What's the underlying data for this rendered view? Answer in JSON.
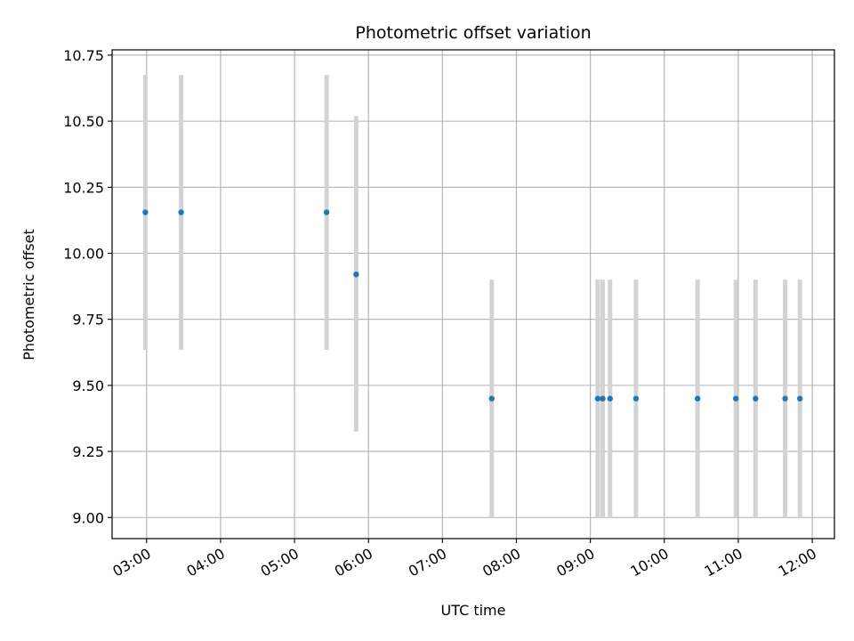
{
  "chart_data": {
    "type": "scatter",
    "title": "Photometric offset variation",
    "xlabel": "UTC time",
    "ylabel": "Photometric offset",
    "grid": true,
    "x_ticks": [
      "03:00",
      "04:00",
      "05:00",
      "06:00",
      "07:00",
      "08:00",
      "09:00",
      "10:00",
      "11:00",
      "12:00"
    ],
    "y_ticks": [
      "9.00",
      "9.25",
      "9.50",
      "9.75",
      "10.00",
      "10.25",
      "10.50",
      "10.75"
    ],
    "xlim": [
      "02:32",
      "12:18"
    ],
    "ylim": [
      8.92,
      10.77
    ],
    "point_color": "#1f77b4",
    "errorbar_color": "#d3d3d3",
    "points": [
      {
        "x": "02:59",
        "y": 10.155,
        "low": 9.635,
        "high": 10.675
      },
      {
        "x": "03:28",
        "y": 10.155,
        "low": 9.635,
        "high": 10.675
      },
      {
        "x": "05:26",
        "y": 10.155,
        "low": 9.635,
        "high": 10.675
      },
      {
        "x": "05:50",
        "y": 9.92,
        "low": 9.325,
        "high": 10.52
      },
      {
        "x": "07:40",
        "y": 9.45,
        "low": 9.0,
        "high": 9.9
      },
      {
        "x": "09:06",
        "y": 9.45,
        "low": 9.0,
        "high": 9.9
      },
      {
        "x": "09:10",
        "y": 9.45,
        "low": 9.0,
        "high": 9.9
      },
      {
        "x": "09:16",
        "y": 9.45,
        "low": 9.0,
        "high": 9.9
      },
      {
        "x": "09:37",
        "y": 9.45,
        "low": 9.0,
        "high": 9.9
      },
      {
        "x": "10:27",
        "y": 9.45,
        "low": 9.0,
        "high": 9.9
      },
      {
        "x": "10:58",
        "y": 9.45,
        "low": 9.0,
        "high": 9.9
      },
      {
        "x": "11:14",
        "y": 9.45,
        "low": 9.0,
        "high": 9.9
      },
      {
        "x": "11:38",
        "y": 9.45,
        "low": 9.0,
        "high": 9.9
      },
      {
        "x": "11:50",
        "y": 9.45,
        "low": 9.0,
        "high": 9.9
      }
    ]
  }
}
